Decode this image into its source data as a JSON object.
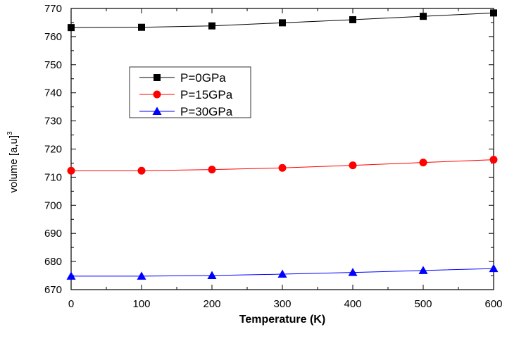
{
  "chart_data": {
    "type": "line",
    "title": "",
    "xlabel": "Temperature (K)",
    "ylabel": "volume [a,u]",
    "ylabel_superscript": "3",
    "x": [
      0,
      100,
      200,
      300,
      400,
      500,
      600
    ],
    "xlim": [
      0,
      600
    ],
    "ylim": [
      670,
      770
    ],
    "xticks": [
      0,
      100,
      200,
      300,
      400,
      500,
      600
    ],
    "yticks": [
      670,
      680,
      690,
      700,
      710,
      720,
      730,
      740,
      750,
      760,
      770
    ],
    "grid": false,
    "legend_position": "upper-left inside plot",
    "series": [
      {
        "name": "P=0GPa",
        "color": "#000000",
        "marker": "square",
        "values": [
          763.2,
          763.3,
          763.8,
          764.9,
          766.0,
          767.2,
          768.4
        ]
      },
      {
        "name": "P=15GPa",
        "color": "#ff0000",
        "marker": "circle",
        "values": [
          712.3,
          712.3,
          712.7,
          713.3,
          714.2,
          715.2,
          716.2
        ]
      },
      {
        "name": "P=30GPa",
        "color": "#0000ff",
        "marker": "triangle",
        "values": [
          674.8,
          674.8,
          675.0,
          675.5,
          676.1,
          676.8,
          677.5
        ]
      }
    ]
  }
}
